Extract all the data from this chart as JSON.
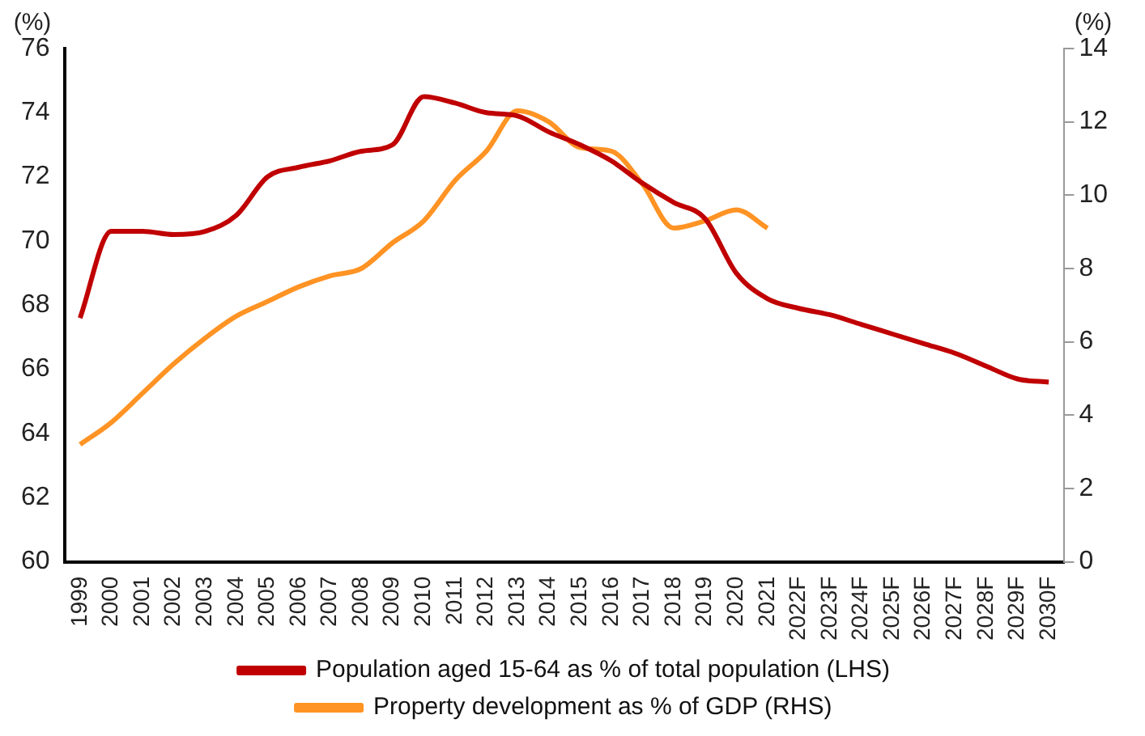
{
  "chart_data": {
    "type": "line",
    "ylabel": "(%)",
    "y2label": "(%)",
    "categories": [
      "1999",
      "2000",
      "2001",
      "2002",
      "2003",
      "2004",
      "2005",
      "2006",
      "2007",
      "2008",
      "2009",
      "2010",
      "2011",
      "2012",
      "2013",
      "2014",
      "2015",
      "2016",
      "2017",
      "2018",
      "2019",
      "2020",
      "2021",
      "2022F",
      "2023F",
      "2024F",
      "2025F",
      "2026F",
      "2027F",
      "2028F",
      "2029F",
      "2030F"
    ],
    "series": [
      {
        "name": "Population aged 15-64 as % of total population (LHS)",
        "color": "#c00000",
        "values": [
          67.6,
          70.3,
          70.3,
          70.2,
          70.3,
          70.8,
          72.0,
          72.3,
          72.5,
          72.8,
          73.0,
          74.5,
          74.3,
          74.0,
          73.9,
          73.4,
          73.0,
          72.5,
          71.8,
          71.2,
          70.7,
          69.0,
          68.2,
          67.9,
          67.7,
          67.4,
          67.1,
          66.8,
          66.5,
          66.1,
          65.7,
          65.6
        ]
      },
      {
        "name": "Property development as % of GDP (RHS)",
        "color": "#ff9324",
        "axis": "y2",
        "values": [
          3.2,
          3.8,
          4.6,
          5.4,
          6.1,
          6.7,
          7.1,
          7.5,
          7.8,
          8.0,
          8.7,
          9.3,
          10.4,
          11.2,
          12.3,
          12.0,
          11.3,
          11.2,
          10.3,
          9.1,
          9.3,
          9.6,
          9.1,
          null,
          null,
          null,
          null,
          null,
          null,
          null,
          null,
          null
        ]
      }
    ],
    "ylim": [
      60,
      76
    ],
    "yticks": [
      60,
      62,
      64,
      66,
      68,
      70,
      72,
      74,
      76
    ],
    "y2lim": [
      0,
      14
    ],
    "y2ticks": [
      0,
      2,
      4,
      6,
      8,
      10,
      12,
      14
    ],
    "grid": false,
    "legend": "bottom",
    "marker": "none",
    "line_style": "solid"
  }
}
